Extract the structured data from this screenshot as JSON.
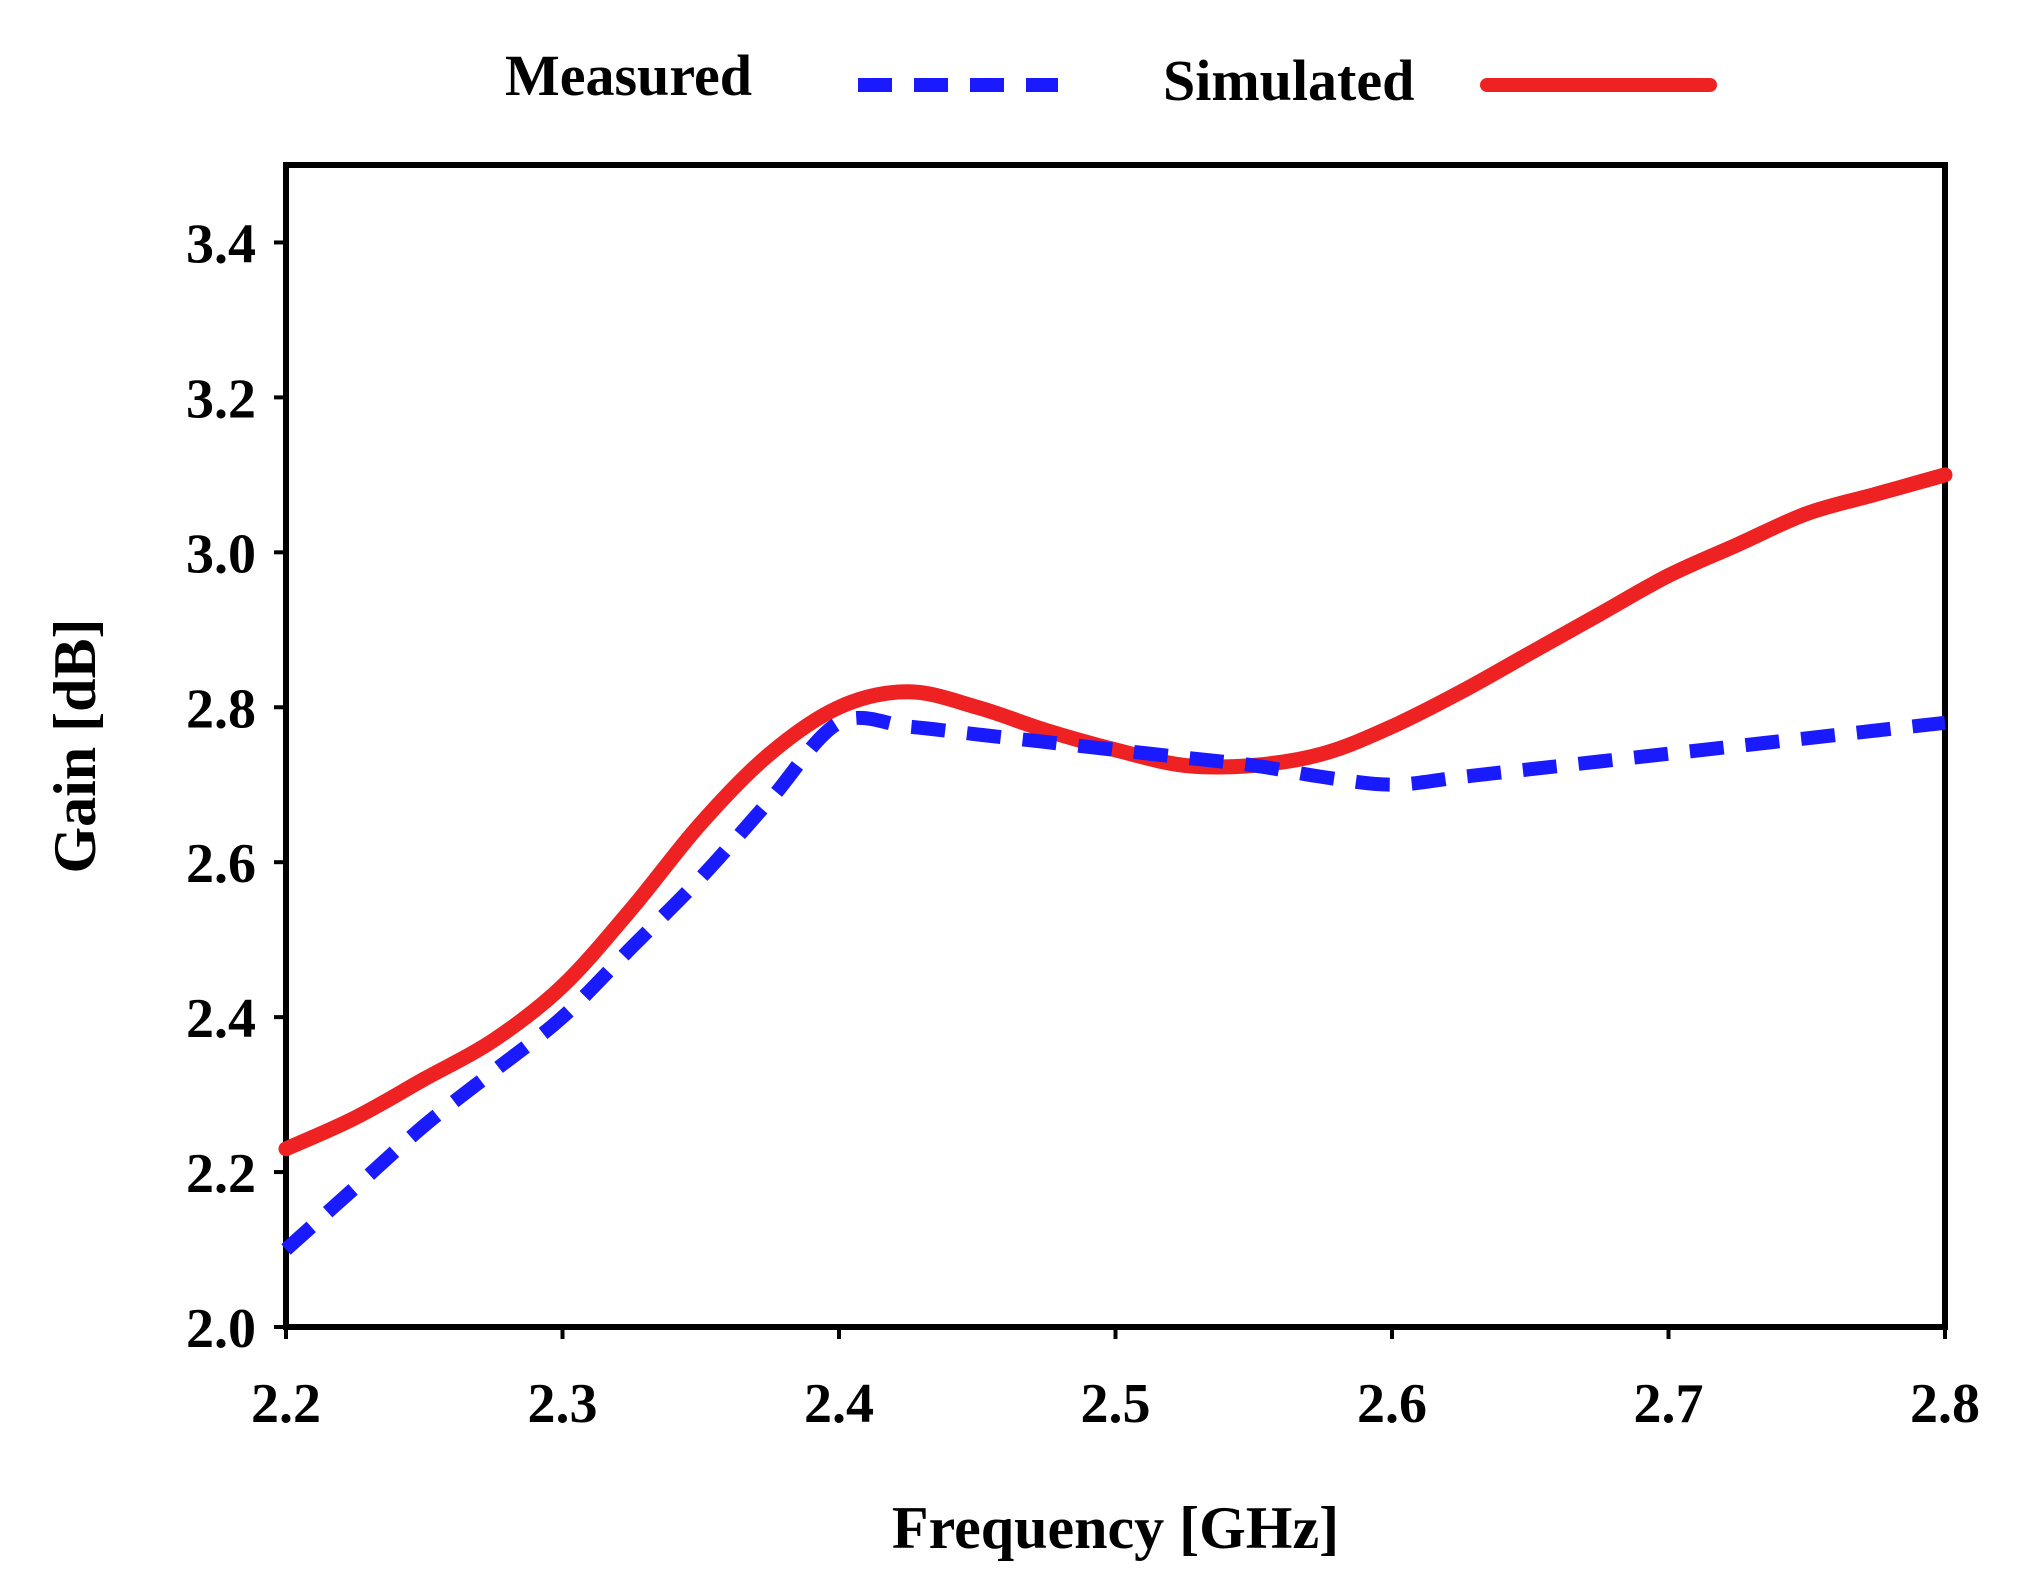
{
  "chart_data": {
    "type": "line",
    "title": "",
    "xlabel": "Frequency [GHz]",
    "ylabel": "Gain [dB]",
    "xlim": [
      2.2,
      2.8
    ],
    "ylim": [
      2.0,
      3.5
    ],
    "x_ticks": [
      "2.2",
      "2.3",
      "2.4",
      "2.5",
      "2.6",
      "2.7",
      "2.8"
    ],
    "y_ticks": [
      "2.0",
      "2.2",
      "2.4",
      "2.6",
      "2.8",
      "3.0",
      "3.2",
      "3.4"
    ],
    "grid": false,
    "legend_position": "top",
    "series": [
      {
        "name": "Measured",
        "color": "#1a1aff",
        "style": "dashed",
        "x": [
          2.2,
          2.225,
          2.25,
          2.275,
          2.3,
          2.325,
          2.35,
          2.375,
          2.4,
          2.425,
          2.45,
          2.475,
          2.5,
          2.525,
          2.55,
          2.575,
          2.6,
          2.625,
          2.65,
          2.675,
          2.7,
          2.725,
          2.75,
          2.775,
          2.8
        ],
        "y": [
          2.1,
          2.18,
          2.26,
          2.33,
          2.4,
          2.49,
          2.58,
          2.68,
          2.78,
          2.775,
          2.765,
          2.755,
          2.745,
          2.735,
          2.725,
          2.71,
          2.7,
          2.71,
          2.72,
          2.73,
          2.74,
          2.75,
          2.76,
          2.77,
          2.78
        ]
      },
      {
        "name": "Simulated",
        "color": "#ee2222",
        "style": "solid",
        "x": [
          2.2,
          2.225,
          2.25,
          2.275,
          2.3,
          2.325,
          2.35,
          2.375,
          2.4,
          2.425,
          2.45,
          2.475,
          2.5,
          2.525,
          2.55,
          2.575,
          2.6,
          2.625,
          2.65,
          2.675,
          2.7,
          2.725,
          2.75,
          2.775,
          2.8
        ],
        "y": [
          2.23,
          2.27,
          2.32,
          2.37,
          2.44,
          2.54,
          2.65,
          2.74,
          2.8,
          2.82,
          2.8,
          2.77,
          2.745,
          2.725,
          2.725,
          2.74,
          2.775,
          2.82,
          2.87,
          2.92,
          2.97,
          3.01,
          3.05,
          3.075,
          3.1
        ]
      }
    ]
  }
}
